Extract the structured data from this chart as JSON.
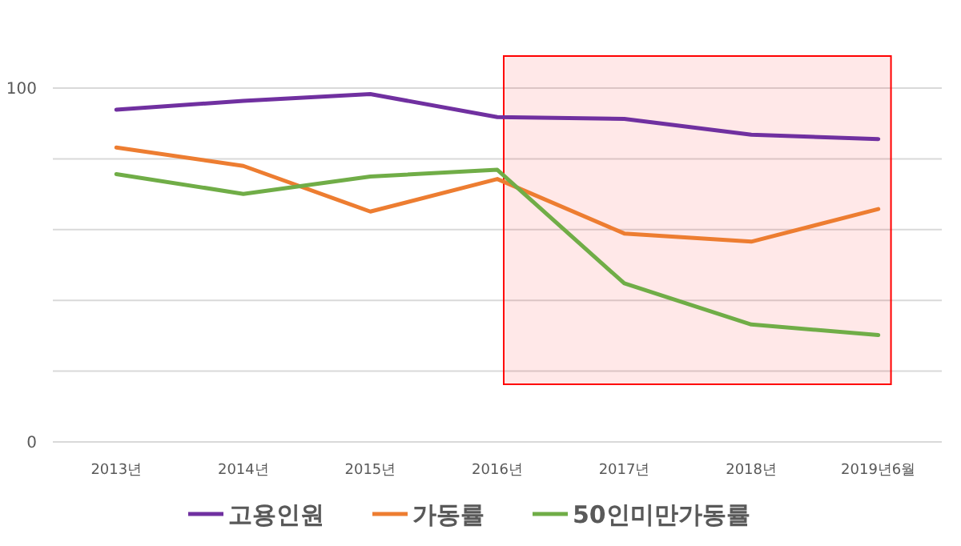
{
  "chart_data": {
    "type": "line",
    "categories": [
      "2013년",
      "2014년",
      "2015년",
      "2016년",
      "2017년",
      "2018년",
      "2019년6월"
    ],
    "series": [
      {
        "name": "고용인원",
        "color": "#7030a0",
        "values": [
          93.9,
          96.4,
          98.3,
          91.8,
          91.3,
          86.8,
          85.6
        ]
      },
      {
        "name": "가동률",
        "color": "#ed7d31",
        "values": [
          83.2,
          78,
          65.1,
          74.3,
          58.9,
          56.6,
          65.8
        ]
      },
      {
        "name": "50인미만가동률",
        "color": "#70ad47",
        "values": [
          75.7,
          70.1,
          75,
          76.9,
          44.8,
          33.2,
          30.2
        ]
      }
    ],
    "ylim": [
      0,
      100
    ],
    "yticks": [
      0,
      {
        "value": 20,
        "label": null
      },
      {
        "value": 40,
        "label": null
      },
      {
        "value": 60,
        "label": null
      },
      {
        "value": 80,
        "label": null
      },
      100
    ],
    "bands": [
      {
        "axis": "x",
        "from": "2016년",
        "to": "2019년6월",
        "color": "#ff0000"
      }
    ],
    "grid": "y",
    "legend": "bottom",
    "marker": "none",
    "line_style": "solid"
  }
}
